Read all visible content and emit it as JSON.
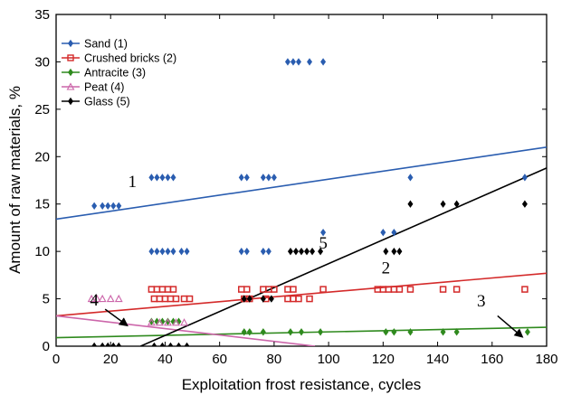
{
  "chart_data": {
    "type": "scatter",
    "xlabel": "Exploitation frost resistance, cycles",
    "ylabel": "Amount of raw materials, %",
    "xlim": [
      0,
      180
    ],
    "ylim": [
      0,
      35
    ],
    "xticks": [
      "0",
      "20",
      "40",
      "60",
      "80",
      "100",
      "120",
      "140",
      "160",
      "180"
    ],
    "yticks": [
      "0",
      "5",
      "10",
      "15",
      "20",
      "25",
      "30",
      "35"
    ],
    "grid": false,
    "legend_position": "top-left",
    "series": [
      {
        "name": "Sand (1)",
        "color": "#2a5db0",
        "marker": "diamond",
        "points": [
          [
            14,
            14.8
          ],
          [
            17,
            14.8
          ],
          [
            19,
            14.8
          ],
          [
            21,
            14.8
          ],
          [
            23,
            14.8
          ],
          [
            35,
            17.8
          ],
          [
            37,
            17.8
          ],
          [
            39,
            17.8
          ],
          [
            41,
            17.8
          ],
          [
            43,
            17.8
          ],
          [
            35,
            10
          ],
          [
            37,
            10
          ],
          [
            39,
            10
          ],
          [
            41,
            10
          ],
          [
            43,
            10
          ],
          [
            46,
            10
          ],
          [
            48,
            10
          ],
          [
            68,
            17.8
          ],
          [
            70,
            17.8
          ],
          [
            76,
            17.8
          ],
          [
            78,
            17.8
          ],
          [
            80,
            17.8
          ],
          [
            68,
            10
          ],
          [
            70,
            10
          ],
          [
            76,
            10
          ],
          [
            78,
            10
          ],
          [
            85,
            30
          ],
          [
            87,
            30
          ],
          [
            89,
            30
          ],
          [
            93,
            30
          ],
          [
            98,
            30
          ],
          [
            98,
            12
          ],
          [
            120,
            12
          ],
          [
            124,
            12
          ],
          [
            130,
            17.8
          ],
          [
            172,
            17.8
          ]
        ],
        "line": [
          [
            0,
            13.4
          ],
          [
            180,
            21
          ]
        ]
      },
      {
        "name": "Crushed bricks (2)",
        "color": "#d42a2a",
        "marker": "square",
        "points": [
          [
            35,
            6
          ],
          [
            37,
            6
          ],
          [
            39,
            6
          ],
          [
            41,
            6
          ],
          [
            43,
            6
          ],
          [
            36,
            5
          ],
          [
            38,
            5
          ],
          [
            40,
            5
          ],
          [
            42,
            5
          ],
          [
            44,
            5
          ],
          [
            47,
            5
          ],
          [
            49,
            5
          ],
          [
            68,
            6
          ],
          [
            70,
            6
          ],
          [
            76,
            6
          ],
          [
            78,
            6
          ],
          [
            80,
            6
          ],
          [
            69,
            5
          ],
          [
            71,
            5
          ],
          [
            77,
            5
          ],
          [
            85,
            6
          ],
          [
            87,
            6
          ],
          [
            85,
            5
          ],
          [
            87,
            5
          ],
          [
            89,
            5
          ],
          [
            93,
            5
          ],
          [
            98,
            6
          ],
          [
            118,
            6
          ],
          [
            120,
            6
          ],
          [
            122,
            6
          ],
          [
            124,
            6
          ],
          [
            126,
            6
          ],
          [
            130,
            6
          ],
          [
            142,
            6
          ],
          [
            147,
            6
          ],
          [
            172,
            6
          ]
        ],
        "line": [
          [
            0,
            3.2
          ],
          [
            180,
            7.7
          ]
        ]
      },
      {
        "name": "Antracite (3)",
        "color": "#2f8a1e",
        "marker": "diamond",
        "points": [
          [
            35,
            2.6
          ],
          [
            37,
            2.6
          ],
          [
            39,
            2.6
          ],
          [
            41,
            2.6
          ],
          [
            43,
            2.6
          ],
          [
            45,
            2.6
          ],
          [
            69,
            1.5
          ],
          [
            71,
            1.5
          ],
          [
            76,
            1.5
          ],
          [
            86,
            1.5
          ],
          [
            90,
            1.5
          ],
          [
            97,
            1.5
          ],
          [
            121,
            1.5
          ],
          [
            124,
            1.5
          ],
          [
            130,
            1.5
          ],
          [
            142,
            1.5
          ],
          [
            147,
            1.5
          ],
          [
            173,
            1.5
          ]
        ],
        "line": [
          [
            0,
            0.9
          ],
          [
            180,
            2
          ]
        ]
      },
      {
        "name": "Peat (4)",
        "color": "#cc66aa",
        "marker": "triangle",
        "points": [
          [
            13,
            5
          ],
          [
            15,
            5
          ],
          [
            17,
            5
          ],
          [
            20,
            5
          ],
          [
            23,
            5
          ],
          [
            35,
            2.5
          ],
          [
            38,
            2.5
          ],
          [
            41,
            2.5
          ],
          [
            44,
            2.5
          ],
          [
            47,
            2.5
          ]
        ],
        "line": [
          [
            0,
            3.2
          ],
          [
            95,
            0
          ]
        ]
      },
      {
        "name": "Glass (5)",
        "color": "#000000",
        "marker": "diamond",
        "points": [
          [
            69,
            5
          ],
          [
            71,
            5
          ],
          [
            76,
            5
          ],
          [
            79,
            5
          ],
          [
            86,
            10
          ],
          [
            88,
            10
          ],
          [
            90,
            10
          ],
          [
            92,
            10
          ],
          [
            94,
            10
          ],
          [
            97,
            10
          ],
          [
            121,
            10
          ],
          [
            124,
            10
          ],
          [
            126,
            10
          ],
          [
            130,
            15
          ],
          [
            142,
            15
          ],
          [
            147,
            15
          ],
          [
            172,
            15
          ],
          [
            14,
            0
          ],
          [
            17,
            0
          ],
          [
            19,
            0
          ],
          [
            21,
            0
          ],
          [
            23,
            0
          ],
          [
            36,
            0
          ],
          [
            39,
            0
          ],
          [
            42,
            0
          ],
          [
            45,
            0
          ],
          [
            48,
            0
          ]
        ],
        "line": [
          [
            31,
            0
          ],
          [
            180,
            18.8
          ]
        ]
      }
    ],
    "annotations": [
      {
        "text": "1",
        "x": 28,
        "y": 16.8
      },
      {
        "text": "2",
        "x": 121,
        "y": 7.7
      },
      {
        "text": "3",
        "x": 156,
        "y": 4.2
      },
      {
        "text": "4",
        "x": 14,
        "y": 4.3
      },
      {
        "text": "5",
        "x": 98,
        "y": 10.3
      }
    ],
    "arrows": [
      {
        "from": [
          18,
          3.9
        ],
        "to": [
          26,
          2.2
        ]
      },
      {
        "from": [
          162,
          3.2
        ],
        "to": [
          171,
          1
        ]
      }
    ]
  }
}
